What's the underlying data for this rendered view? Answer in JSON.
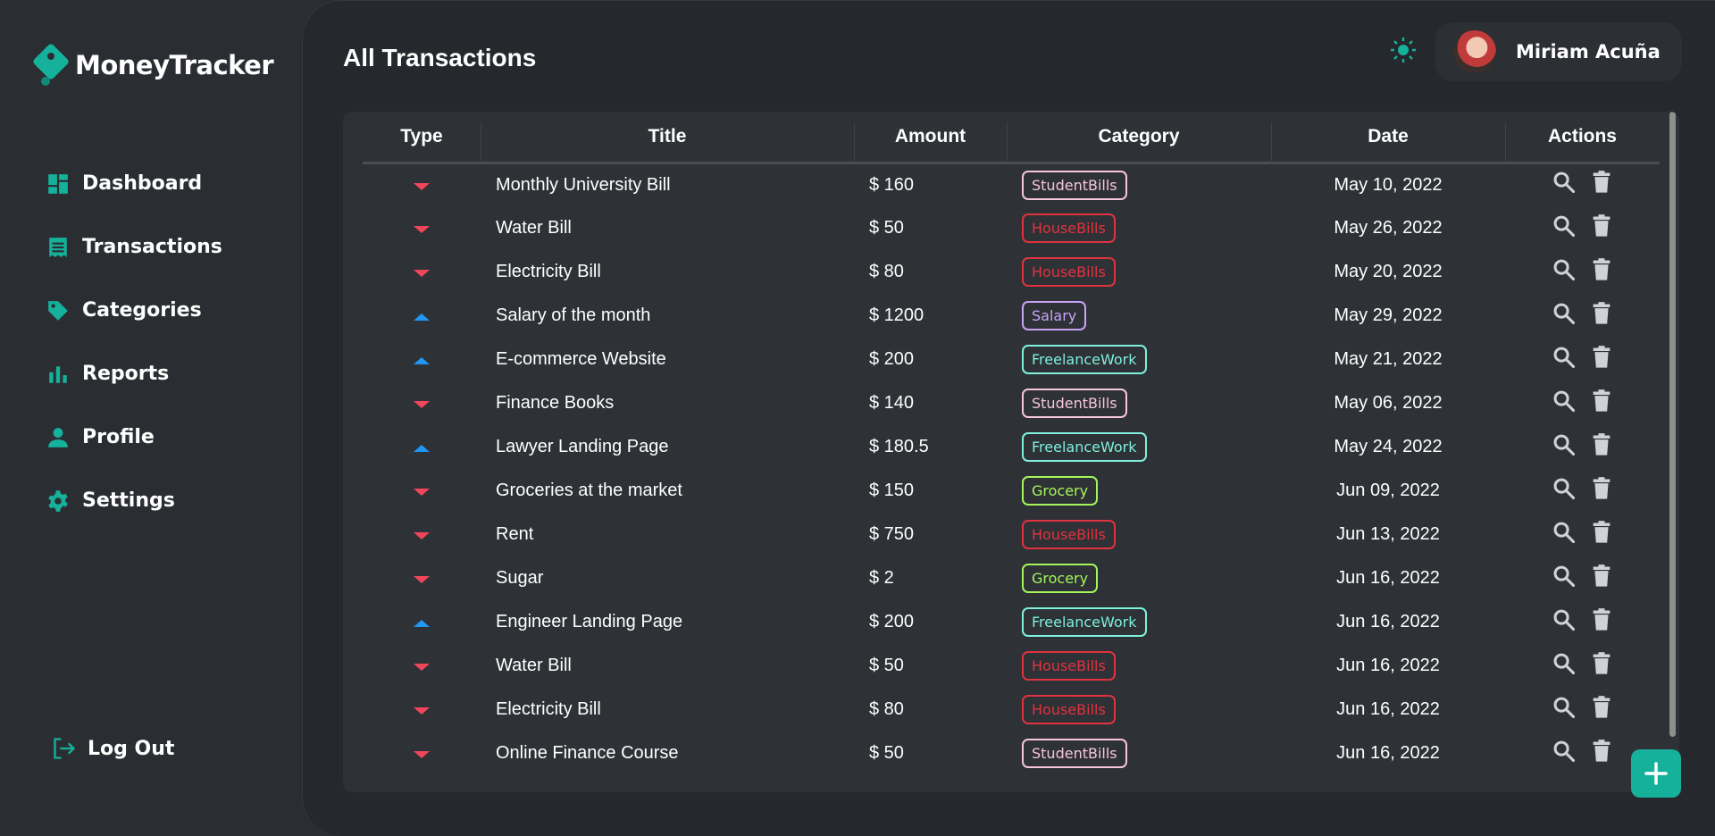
{
  "app": {
    "name": "MoneyTracker",
    "accent": "#15b19a"
  },
  "sidebar": {
    "items": [
      {
        "label": "Dashboard",
        "icon": "dashboard-icon"
      },
      {
        "label": "Transactions",
        "icon": "receipt-icon"
      },
      {
        "label": "Categories",
        "icon": "tag-icon"
      },
      {
        "label": "Reports",
        "icon": "bar-chart-icon"
      },
      {
        "label": "Profile",
        "icon": "person-icon"
      },
      {
        "label": "Settings",
        "icon": "gear-icon"
      }
    ],
    "logout_label": "Log Out"
  },
  "header": {
    "title": "All Transactions",
    "theme_icon": "sun-icon",
    "user": {
      "name": "Miriam Acuña"
    }
  },
  "table": {
    "columns": [
      "Type",
      "Title",
      "Amount",
      "Category",
      "Date",
      "Actions"
    ],
    "category_colors": {
      "StudentBills": "#f6c6da",
      "HouseBills": "#e0333f",
      "Salary": "#c9a3f5",
      "FreelanceWork": "#7ff1dd",
      "Grocery": "#a5f55c"
    },
    "rows": [
      {
        "type": "expense",
        "title": "Monthly University Bill",
        "amount": "$ 160",
        "category": "StudentBills",
        "date": "May 10, 2022"
      },
      {
        "type": "expense",
        "title": "Water Bill",
        "amount": "$ 50",
        "category": "HouseBills",
        "date": "May 26, 2022"
      },
      {
        "type": "expense",
        "title": "Electricity Bill",
        "amount": "$ 80",
        "category": "HouseBills",
        "date": "May 20, 2022"
      },
      {
        "type": "income",
        "title": "Salary of the month",
        "amount": "$ 1200",
        "category": "Salary",
        "date": "May 29, 2022"
      },
      {
        "type": "income",
        "title": "E-commerce Website",
        "amount": "$ 200",
        "category": "FreelanceWork",
        "date": "May 21, 2022"
      },
      {
        "type": "expense",
        "title": "Finance Books",
        "amount": "$ 140",
        "category": "StudentBills",
        "date": "May 06, 2022"
      },
      {
        "type": "income",
        "title": "Lawyer Landing Page",
        "amount": "$ 180.5",
        "category": "FreelanceWork",
        "date": "May 24, 2022"
      },
      {
        "type": "expense",
        "title": "Groceries at the market",
        "amount": "$ 150",
        "category": "Grocery",
        "date": "Jun 09, 2022"
      },
      {
        "type": "expense",
        "title": "Rent",
        "amount": "$ 750",
        "category": "HouseBills",
        "date": "Jun 13, 2022"
      },
      {
        "type": "expense",
        "title": "Sugar",
        "amount": "$ 2",
        "category": "Grocery",
        "date": "Jun 16, 2022"
      },
      {
        "type": "income",
        "title": "Engineer Landing Page",
        "amount": "$ 200",
        "category": "FreelanceWork",
        "date": "Jun 16, 2022"
      },
      {
        "type": "expense",
        "title": "Water Bill",
        "amount": "$ 50",
        "category": "HouseBills",
        "date": "Jun 16, 2022"
      },
      {
        "type": "expense",
        "title": "Electricity Bill",
        "amount": "$ 80",
        "category": "HouseBills",
        "date": "Jun 16, 2022"
      },
      {
        "type": "expense",
        "title": "Online Finance Course",
        "amount": "$ 50",
        "category": "StudentBills",
        "date": "Jun 16, 2022"
      }
    ]
  },
  "fab": {
    "icon": "plus-icon"
  }
}
